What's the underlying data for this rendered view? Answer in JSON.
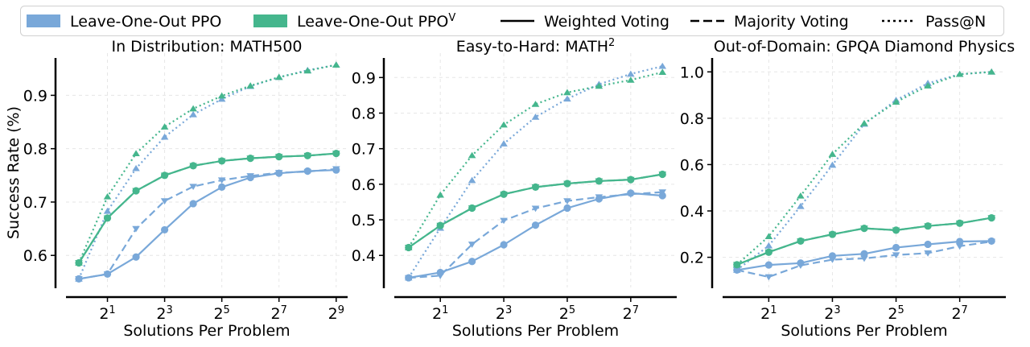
{
  "colors": {
    "ppo": "#79a8d9",
    "ppov": "#45b68d"
  },
  "legend": [
    {
      "label": "Leave-One-Out PPO",
      "label_sup": "",
      "kind": "patch",
      "color": "#79a8d9"
    },
    {
      "label": "Leave-One-Out PPO",
      "label_sup": "V",
      "kind": "patch",
      "color": "#45b68d"
    },
    {
      "label": "Weighted Voting",
      "label_sup": "",
      "kind": "solid"
    },
    {
      "label": "Majority Voting",
      "label_sup": "",
      "kind": "dashed"
    },
    {
      "label": "Pass@N",
      "label_sup": "",
      "kind": "dotted"
    }
  ],
  "chart_data": [
    {
      "type": "line",
      "title": "In Distribution: MATH500",
      "title_sup": "",
      "xlabel": "Solutions Per Problem",
      "ylabel": "Success Rate (%)",
      "x_log2": [
        0,
        1,
        2,
        3,
        4,
        5,
        6,
        7,
        8,
        9
      ],
      "xticks": [
        {
          "exp": "1",
          "v": 1
        },
        {
          "exp": "3",
          "v": 3
        },
        {
          "exp": "5",
          "v": 5
        },
        {
          "exp": "7",
          "v": 7
        },
        {
          "exp": "9",
          "v": 9
        }
      ],
      "yticks": [
        0.6,
        0.7,
        0.8,
        0.9
      ],
      "ytick_labels": [
        "0.6",
        "0.7",
        "0.8",
        "0.9"
      ],
      "ylim": [
        0.54,
        0.97
      ],
      "xlim": [
        -0.45,
        9.4
      ],
      "series": [
        {
          "name": "Leave-One-Out PPO",
          "method": "Weighted Voting",
          "color_key": "ppo",
          "values": [
            0.556,
            0.565,
            0.597,
            0.648,
            0.697,
            0.728,
            0.746,
            0.754,
            0.758,
            0.76
          ]
        },
        {
          "name": "Leave-One-Out PPO",
          "method": "Majority Voting",
          "color_key": "ppo",
          "values": [
            0.556,
            0.565,
            0.65,
            0.702,
            0.729,
            0.741,
            0.749,
            0.755,
            0.757,
            0.762
          ]
        },
        {
          "name": "Leave-One-Out PPO",
          "method": "Pass@N",
          "color_key": "ppo",
          "values": [
            0.556,
            0.683,
            0.763,
            0.822,
            0.864,
            0.893,
            0.917,
            0.934,
            0.947,
            0.957
          ]
        },
        {
          "name": "Leave-One-Out PPO^V",
          "method": "Weighted Voting",
          "color_key": "ppov",
          "values": [
            0.586,
            0.67,
            0.721,
            0.75,
            0.768,
            0.777,
            0.782,
            0.785,
            0.787,
            0.791
          ]
        },
        {
          "name": "Leave-One-Out PPO^V",
          "method": "Majority Voting",
          "color_key": "ppov",
          "values": [
            0.586,
            0.67,
            0.721,
            0.75,
            0.768,
            0.777,
            0.782,
            0.785,
            0.787,
            0.791
          ]
        },
        {
          "name": "Leave-One-Out PPO^V",
          "method": "Pass@N",
          "color_key": "ppov",
          "values": [
            0.586,
            0.71,
            0.791,
            0.841,
            0.875,
            0.899,
            0.918,
            0.934,
            0.946,
            0.957
          ]
        }
      ]
    },
    {
      "type": "line",
      "title": "Easy-to-Hard: MATH",
      "title_sup": "2",
      "xlabel": "Solutions Per Problem",
      "ylabel": "",
      "x_log2": [
        0,
        1,
        2,
        3,
        4,
        5,
        6,
        7,
        8
      ],
      "xticks": [
        {
          "exp": "1",
          "v": 1
        },
        {
          "exp": "3",
          "v": 3
        },
        {
          "exp": "5",
          "v": 5
        },
        {
          "exp": "7",
          "v": 7
        }
      ],
      "yticks": [
        0.4,
        0.5,
        0.6,
        0.7,
        0.8,
        0.9
      ],
      "ytick_labels": [
        "0.4",
        "0.5",
        "0.6",
        "0.7",
        "0.8",
        "0.9"
      ],
      "ylim": [
        0.31,
        0.955
      ],
      "xlim": [
        -0.45,
        8.45
      ],
      "series": [
        {
          "name": "Leave-One-Out PPO",
          "method": "Weighted Voting",
          "color_key": "ppo",
          "values": [
            0.337,
            0.352,
            0.383,
            0.43,
            0.485,
            0.533,
            0.559,
            0.575,
            0.568
          ]
        },
        {
          "name": "Leave-One-Out PPO",
          "method": "Majority Voting",
          "color_key": "ppo",
          "values": [
            0.337,
            0.343,
            0.431,
            0.498,
            0.532,
            0.553,
            0.564,
            0.572,
            0.578
          ]
        },
        {
          "name": "Leave-One-Out PPO",
          "method": "Pass@N",
          "color_key": "ppo",
          "values": [
            0.337,
            0.477,
            0.611,
            0.714,
            0.789,
            0.84,
            0.881,
            0.91,
            0.932
          ]
        },
        {
          "name": "Leave-One-Out PPO^V",
          "method": "Weighted Voting",
          "color_key": "ppov",
          "values": [
            0.422,
            0.484,
            0.533,
            0.572,
            0.592,
            0.602,
            0.609,
            0.613,
            0.628
          ]
        },
        {
          "name": "Leave-One-Out PPO^V",
          "method": "Majority Voting",
          "color_key": "ppov",
          "values": [
            0.422,
            0.484,
            0.533,
            0.572,
            0.592,
            0.602,
            0.609,
            0.613,
            0.628
          ]
        },
        {
          "name": "Leave-One-Out PPO^V",
          "method": "Pass@N",
          "color_key": "ppov",
          "values": [
            0.422,
            0.57,
            0.681,
            0.767,
            0.825,
            0.858,
            0.876,
            0.893,
            0.915
          ]
        }
      ]
    },
    {
      "type": "line",
      "title": "Out-of-Domain: GPQA Diamond Physics",
      "title_sup": "",
      "xlabel": "Solutions Per Problem",
      "ylabel": "",
      "x_log2": [
        0,
        1,
        2,
        3,
        4,
        5,
        6,
        7,
        8
      ],
      "xticks": [
        {
          "exp": "1",
          "v": 1
        },
        {
          "exp": "3",
          "v": 3
        },
        {
          "exp": "5",
          "v": 5
        },
        {
          "exp": "7",
          "v": 7
        }
      ],
      "yticks": [
        0.2,
        0.4,
        0.6,
        0.8,
        1.0
      ],
      "ytick_labels": [
        "0.2",
        "0.4",
        "0.6",
        "0.8",
        "1.0"
      ],
      "ylim": [
        0.07,
        1.06
      ],
      "xlim": [
        -0.45,
        8.45
      ],
      "series": [
        {
          "name": "Leave-One-Out PPO",
          "method": "Weighted Voting",
          "color_key": "ppo",
          "values": [
            0.145,
            0.167,
            0.175,
            0.206,
            0.215,
            0.242,
            0.256,
            0.268,
            0.27
          ]
        },
        {
          "name": "Leave-One-Out PPO",
          "method": "Majority Voting",
          "color_key": "ppo",
          "values": [
            0.145,
            0.115,
            0.165,
            0.19,
            0.195,
            0.21,
            0.218,
            0.248,
            0.268
          ]
        },
        {
          "name": "Leave-One-Out PPO",
          "method": "Pass@N",
          "color_key": "ppo",
          "values": [
            0.145,
            0.25,
            0.42,
            0.598,
            0.775,
            0.878,
            0.951,
            0.99,
            1.0
          ]
        },
        {
          "name": "Leave-One-Out PPO^V",
          "method": "Weighted Voting",
          "color_key": "ppov",
          "values": [
            0.168,
            0.222,
            0.27,
            0.299,
            0.325,
            0.317,
            0.335,
            0.347,
            0.37
          ]
        },
        {
          "name": "Leave-One-Out PPO^V",
          "method": "Majority Voting",
          "color_key": "ppov",
          "values": [
            0.168,
            0.222,
            0.27,
            0.299,
            0.325,
            0.317,
            0.335,
            0.347,
            0.37
          ]
        },
        {
          "name": "Leave-One-Out PPO^V",
          "method": "Pass@N",
          "color_key": "ppov",
          "values": [
            0.168,
            0.29,
            0.465,
            0.645,
            0.778,
            0.87,
            0.94,
            0.99,
            1.0
          ]
        }
      ]
    }
  ]
}
